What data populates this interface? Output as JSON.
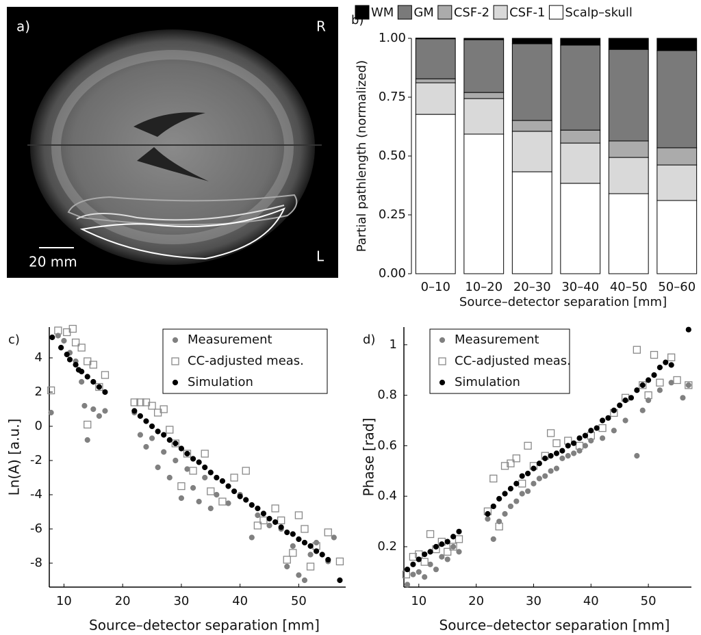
{
  "image_panel": {
    "label": "a)",
    "right_label": "R",
    "left_label": "L",
    "scale_bar": "20 mm"
  },
  "chart_data": [
    {
      "type": "stacked_bar",
      "label": "b)",
      "y_label": "Partial pathlength (normalized)",
      "x_label": "Source–detector separation [mm]",
      "categories": [
        "0–10",
        "10–20",
        "20–30",
        "30–40",
        "40–50",
        "50–60"
      ],
      "series": [
        {
          "name": "WM",
          "color": "#000000",
          "values": [
            0.003,
            0.006,
            0.023,
            0.029,
            0.047,
            0.052
          ]
        },
        {
          "name": "GM",
          "color": "#7a7a7a",
          "values": [
            0.17,
            0.224,
            0.326,
            0.361,
            0.389,
            0.413
          ]
        },
        {
          "name": "CSF-2",
          "color": "#ababab",
          "values": [
            0.017,
            0.026,
            0.046,
            0.055,
            0.07,
            0.073
          ]
        },
        {
          "name": "CSF-1",
          "color": "#d9d9d9",
          "values": [
            0.134,
            0.151,
            0.172,
            0.171,
            0.154,
            0.151
          ]
        },
        {
          "name": "Scalp–skull",
          "color": "#ffffff",
          "values": [
            0.677,
            0.593,
            0.433,
            0.384,
            0.34,
            0.311
          ]
        }
      ],
      "ylim": [
        0,
        1
      ],
      "yticks": [
        {
          "value": 0,
          "label": "0.00"
        },
        {
          "value": 0.25,
          "label": "0.25"
        },
        {
          "value": 0.5,
          "label": "0.50"
        },
        {
          "value": 0.75,
          "label": "0.75"
        },
        {
          "value": 1,
          "label": "1.00"
        }
      ]
    },
    {
      "type": "scatter",
      "label": "c)",
      "y_label": "Ln(A) [a.u.]",
      "x_label": "Source–detector separation [mm]",
      "xlim": [
        7.5,
        58
      ],
      "ylim": [
        -9.4,
        5.8
      ],
      "xticks": [
        10,
        20,
        30,
        40,
        50
      ],
      "yticks": [
        4,
        2,
        0,
        -2,
        -4,
        -6,
        -8
      ],
      "legend": "upper right",
      "series": [
        {
          "name": "Measurement",
          "color": "#808080",
          "marker": "circle",
          "filled": true,
          "x": [
            7.8,
            9,
            10,
            11,
            12,
            13,
            13.5,
            14,
            15,
            16,
            17,
            22,
            23,
            24,
            25,
            26,
            27,
            28,
            29,
            30,
            31,
            32,
            33,
            34,
            35,
            36,
            38,
            40,
            42,
            43,
            45,
            47,
            48,
            49,
            50,
            51,
            52,
            53,
            55,
            56
          ],
          "y": [
            0.8,
            5.3,
            5.0,
            4.3,
            3.8,
            2.6,
            1.2,
            -0.8,
            1.0,
            0.6,
            0.9,
            0.8,
            -0.5,
            -1.2,
            -0.7,
            -2.4,
            -1.5,
            -3.0,
            -2.0,
            -4.2,
            -2.5,
            -3.6,
            -4.4,
            -3.0,
            -4.8,
            -4.0,
            -4.5,
            -4.0,
            -6.5,
            -5.2,
            -5.8,
            -6.0,
            -8.2,
            -7.0,
            -8.7,
            -9.0,
            -7.5,
            -6.8,
            -7.9,
            -6.5
          ]
        },
        {
          "name": "CC-adjusted meas.",
          "color": "#888888",
          "marker": "square",
          "filled": false,
          "x": [
            7.8,
            9,
            10.5,
            11.5,
            12,
            13,
            14,
            15,
            16,
            17,
            14,
            22,
            23,
            24,
            25,
            26,
            27,
            28,
            29,
            30,
            31,
            32,
            34,
            35,
            37,
            39,
            41,
            43,
            44,
            46,
            47,
            48,
            49,
            50,
            51,
            52,
            53,
            55,
            57
          ],
          "y": [
            2.1,
            5.6,
            5.5,
            5.7,
            4.9,
            4.6,
            3.8,
            3.6,
            2.3,
            3.0,
            0.1,
            1.4,
            1.4,
            1.4,
            1.2,
            0.8,
            1.0,
            -0.2,
            -1.0,
            -3.5,
            -1.6,
            -2.6,
            -1.6,
            -3.8,
            -4.4,
            -3.0,
            -2.6,
            -5.8,
            -5.5,
            -4.8,
            -5.5,
            -7.8,
            -7.4,
            -5.2,
            -6.0,
            -8.2,
            -7.0,
            -6.2,
            -7.9
          ]
        },
        {
          "name": "Simulation",
          "color": "#000000",
          "marker": "circle",
          "filled": true,
          "x": [
            8,
            9.5,
            10.5,
            11,
            12,
            12.5,
            13,
            14,
            15,
            16,
            17,
            22,
            23,
            24,
            25,
            26,
            27,
            28,
            29,
            30,
            31,
            32,
            33,
            34,
            35,
            36,
            37,
            38,
            39,
            40,
            41,
            42,
            43,
            44,
            45,
            46,
            47,
            48,
            49,
            50,
            51,
            52,
            53,
            54,
            55,
            57
          ],
          "y": [
            5.2,
            4.6,
            4.2,
            3.9,
            3.6,
            3.3,
            3.2,
            2.9,
            2.6,
            2.3,
            2.0,
            0.9,
            0.6,
            0.3,
            0,
            -0.3,
            -0.5,
            -0.8,
            -1.0,
            -1.3,
            -1.6,
            -1.9,
            -2.1,
            -2.4,
            -2.7,
            -3.0,
            -3.2,
            -3.5,
            -3.8,
            -4.1,
            -4.3,
            -4.6,
            -4.8,
            -5.1,
            -5.4,
            -5.6,
            -5.9,
            -6.2,
            -6.3,
            -6.6,
            -6.8,
            -7.0,
            -7.3,
            -7.5,
            -7.8,
            -9.0
          ]
        }
      ]
    },
    {
      "type": "scatter",
      "label": "d)",
      "y_label": "Phase [rad]",
      "x_label": "Source–detector separation [mm]",
      "xlim": [
        7.4,
        57.5
      ],
      "ylim": [
        0.04,
        1.07
      ],
      "xticks": [
        10,
        20,
        30,
        40,
        50
      ],
      "yticks": [
        0.2,
        0.4,
        0.6,
        0.8,
        1
      ],
      "legend": "upper left",
      "series": [
        {
          "name": "Measurement",
          "color": "#808080",
          "marker": "circle",
          "filled": true,
          "x": [
            8,
            9,
            10,
            11,
            12,
            13,
            14,
            15,
            16,
            17,
            22,
            23,
            24,
            25,
            26,
            27,
            28,
            29,
            30,
            31,
            32,
            33,
            34,
            35,
            36,
            37,
            38,
            39,
            40,
            42,
            44,
            46,
            48,
            49,
            50,
            52,
            54,
            56,
            57
          ],
          "y": [
            0.05,
            0.09,
            0.1,
            0.08,
            0.13,
            0.11,
            0.16,
            0.15,
            0.2,
            0.18,
            0.31,
            0.23,
            0.3,
            0.33,
            0.36,
            0.38,
            0.41,
            0.42,
            0.45,
            0.47,
            0.48,
            0.5,
            0.51,
            0.55,
            0.56,
            0.57,
            0.58,
            0.6,
            0.62,
            0.63,
            0.66,
            0.7,
            0.56,
            0.74,
            0.78,
            0.82,
            0.85,
            0.79,
            0.84
          ]
        },
        {
          "name": "CC-adjusted meas.",
          "color": "#888888",
          "marker": "square",
          "filled": false,
          "x": [
            7.8,
            9,
            10,
            11,
            12,
            13,
            14,
            15,
            16,
            17,
            22,
            23,
            24,
            25,
            26,
            27,
            28,
            29,
            30,
            32,
            33,
            34,
            36,
            38,
            40,
            42,
            44,
            46,
            48,
            49,
            50,
            51,
            52,
            54,
            55,
            57
          ],
          "y": [
            0.09,
            0.16,
            0.17,
            0.14,
            0.25,
            0.19,
            0.22,
            0.18,
            0.2,
            0.23,
            0.34,
            0.47,
            0.28,
            0.52,
            0.53,
            0.55,
            0.45,
            0.6,
            0.52,
            0.56,
            0.65,
            0.61,
            0.62,
            0.6,
            0.64,
            0.67,
            0.73,
            0.79,
            0.98,
            0.84,
            0.8,
            0.96,
            0.85,
            0.95,
            0.86,
            0.84
          ]
        },
        {
          "name": "Simulation",
          "color": "#000000",
          "marker": "circle",
          "filled": true,
          "x": [
            8,
            9,
            10,
            11,
            12,
            13,
            14,
            15,
            16,
            17,
            22,
            23,
            24,
            25,
            26,
            27,
            28,
            29,
            30,
            31,
            32,
            33,
            34,
            35,
            36,
            37,
            38,
            39,
            40,
            41,
            42,
            43,
            44,
            45,
            46,
            47,
            48,
            49,
            50,
            51,
            52,
            53,
            54,
            57
          ],
          "y": [
            0.11,
            0.13,
            0.15,
            0.17,
            0.18,
            0.2,
            0.21,
            0.22,
            0.24,
            0.26,
            0.33,
            0.36,
            0.39,
            0.41,
            0.43,
            0.45,
            0.48,
            0.49,
            0.51,
            0.53,
            0.55,
            0.56,
            0.57,
            0.58,
            0.6,
            0.61,
            0.63,
            0.64,
            0.66,
            0.67,
            0.7,
            0.71,
            0.74,
            0.76,
            0.78,
            0.79,
            0.82,
            0.84,
            0.86,
            0.88,
            0.91,
            0.93,
            0.92,
            1.06
          ]
        }
      ]
    }
  ]
}
